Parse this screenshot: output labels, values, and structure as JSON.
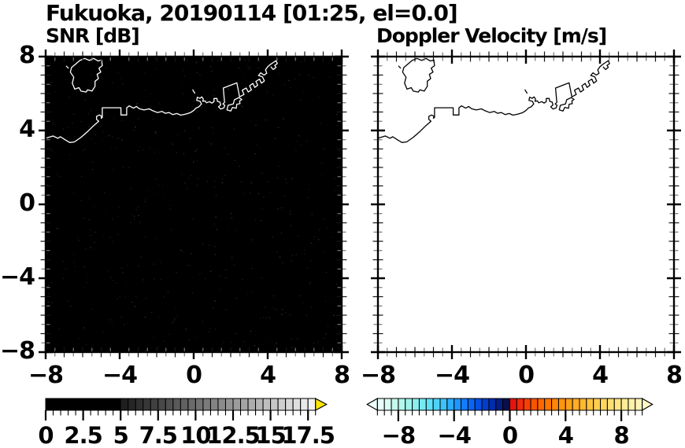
{
  "title": "Fukuoka, 20190114 [01:25, el=0.0]",
  "panels": {
    "left": {
      "subtitle": "SNR [dB]",
      "background": "#000000",
      "coast_color": "#ffffff",
      "has_speckle": true
    },
    "right": {
      "subtitle": "Doppler Velocity [m/s]",
      "background": "#ffffff",
      "coast_color": "#000000",
      "has_speckle": false
    }
  },
  "axes": {
    "range": [
      -8,
      8
    ],
    "minor_step": 0.5,
    "major_tick_values": [
      -8,
      -4,
      0,
      4,
      8
    ],
    "x_tick_labels": [
      "−8",
      "−4",
      "0",
      "4",
      "8"
    ],
    "y_tick_labels": [
      "8",
      "4",
      "0",
      "−4",
      "−8"
    ]
  },
  "colorbars": {
    "snr": {
      "range": [
        0,
        18
      ],
      "segment_step": 0.5,
      "tick_label_values": [
        0,
        2.5,
        5,
        7.5,
        10,
        12.5,
        15,
        17.5
      ],
      "tick_labels": [
        "0",
        "2.5",
        "5",
        "7.5",
        "10",
        "12.5",
        "15",
        "17.5"
      ],
      "black_until": 4.75,
      "gray_start": 30,
      "gray_end": 240,
      "over_arrow_color": "#ffe600"
    },
    "velocity": {
      "range": [
        -9.5,
        9.5
      ],
      "segment_step": 0.5,
      "tick_label_values": [
        -8,
        -4,
        0,
        4,
        8
      ],
      "tick_labels": [
        "−8",
        "−4",
        "0",
        "4",
        "8"
      ],
      "under_arrow_color": "#edfffa",
      "over_arrow_color": "#fff7c8",
      "segment_colors": [
        "#e9fef8",
        "#d9fcf3",
        "#c6faef",
        "#b2f7ec",
        "#9ef3ec",
        "#8aefee",
        "#75e9f2",
        "#60e0f6",
        "#4dd3f9",
        "#3bc2fb",
        "#2badfd",
        "#1d96fe",
        "#127dfb",
        "#0965f3",
        "#0350e4",
        "#003dcd",
        "#002cab",
        "#051d80",
        "#081048",
        "#e51410",
        "#ef2b09",
        "#f74104",
        "#fb5401",
        "#fe6600",
        "#ff7700",
        "#ff8605",
        "#ff940d",
        "#ffa117",
        "#ffad22",
        "#ffb92f",
        "#ffc43e",
        "#ffce4e",
        "#ffd75f",
        "#ffdf71",
        "#ffe683",
        "#ffec96",
        "#fff1a8",
        "#fff5ba"
      ]
    }
  },
  "coastline": {
    "segments": [
      [
        [
          -6.6,
          7.41
        ],
        [
          -6.67,
          7.16
        ],
        [
          -6.48,
          6.88
        ],
        [
          -6.56,
          6.56
        ],
        [
          -6.43,
          6.24
        ],
        [
          -6.2,
          6.32
        ],
        [
          -6.09,
          6.13
        ],
        [
          -5.82,
          6.08
        ],
        [
          -5.73,
          6.2
        ],
        [
          -5.5,
          6.13
        ],
        [
          -5.33,
          6.39
        ],
        [
          -5.33,
          6.67
        ],
        [
          -5.15,
          6.81
        ],
        [
          -5.22,
          7.04
        ],
        [
          -5.02,
          7.16
        ],
        [
          -5.12,
          7.37
        ],
        [
          -4.94,
          7.51
        ],
        [
          -4.98,
          7.82
        ],
        [
          -5.17,
          7.76
        ],
        [
          -5.4,
          7.9
        ],
        [
          -5.64,
          7.79
        ],
        [
          -5.89,
          7.9
        ],
        [
          -6.15,
          7.79
        ],
        [
          -6.35,
          7.62
        ],
        [
          -6.6,
          7.41
        ]
      ],
      [
        [
          -6.88,
          7.48
        ],
        [
          -6.78,
          7.38
        ]
      ],
      [
        [
          -0.05,
          6.2
        ],
        [
          0.06,
          6.02
        ]
      ],
      [
        [
          -8.0,
          3.58
        ],
        [
          -7.6,
          3.7
        ],
        [
          -7.35,
          3.58
        ],
        [
          -7.2,
          3.66
        ],
        [
          -6.95,
          3.5
        ],
        [
          -6.7,
          3.35
        ],
        [
          -6.45,
          3.38
        ],
        [
          -6.1,
          3.62
        ],
        [
          -5.7,
          3.97
        ],
        [
          -5.4,
          4.27
        ],
        [
          -5.13,
          4.5
        ],
        [
          -5.25,
          4.6
        ],
        [
          -5.25,
          4.76
        ],
        [
          -5.1,
          4.84
        ],
        [
          -4.97,
          4.77
        ],
        [
          -5.0,
          4.66
        ],
        [
          -4.94,
          4.7
        ],
        [
          -4.94,
          5.23
        ],
        [
          -3.93,
          5.23
        ],
        [
          -3.93,
          4.84
        ],
        [
          -3.62,
          4.84
        ],
        [
          -3.62,
          5.23
        ],
        [
          -3.48,
          5.33
        ],
        [
          -3.26,
          5.21
        ],
        [
          -3.09,
          5.3
        ],
        [
          -2.95,
          5.18
        ],
        [
          -2.69,
          5.11
        ],
        [
          -2.41,
          5.17
        ],
        [
          -2.21,
          5.07
        ],
        [
          -1.96,
          4.97
        ],
        [
          -1.71,
          5.03
        ],
        [
          -1.54,
          4.93
        ],
        [
          -1.33,
          4.97
        ],
        [
          -1.12,
          4.86
        ],
        [
          -0.91,
          4.92
        ],
        [
          -0.7,
          4.83
        ],
        [
          -0.42,
          4.89
        ],
        [
          -0.17,
          4.97
        ],
        [
          0.0,
          5.08
        ],
        [
          0.14,
          5.22
        ],
        [
          0.28,
          5.28
        ],
        [
          0.42,
          5.44
        ],
        [
          0.35,
          5.58
        ],
        [
          0.16,
          5.63
        ],
        [
          0.2,
          5.8
        ],
        [
          0.34,
          5.74
        ],
        [
          0.44,
          5.82
        ],
        [
          0.52,
          5.7
        ],
        [
          0.49,
          5.58
        ],
        [
          0.62,
          5.6
        ],
        [
          0.69,
          5.5
        ],
        [
          0.86,
          5.56
        ],
        [
          0.98,
          5.48
        ],
        [
          1.1,
          5.56
        ],
        [
          1.1,
          5.73
        ],
        [
          1.26,
          5.73
        ],
        [
          1.28,
          5.58
        ],
        [
          1.42,
          5.53
        ],
        [
          1.46,
          5.38
        ],
        [
          1.34,
          5.28
        ],
        [
          1.46,
          5.16
        ],
        [
          1.63,
          5.22
        ],
        [
          1.68,
          5.36
        ],
        [
          1.58,
          5.44
        ],
        [
          1.67,
          5.52
        ],
        [
          1.6,
          6.3
        ],
        [
          2.33,
          6.58
        ],
        [
          2.48,
          5.82
        ],
        [
          2.72,
          5.95
        ],
        [
          2.62,
          6.18
        ],
        [
          2.84,
          6.3
        ],
        [
          2.95,
          6.08
        ],
        [
          3.12,
          6.2
        ],
        [
          3.02,
          6.42
        ],
        [
          3.2,
          6.55
        ],
        [
          3.3,
          6.33
        ],
        [
          3.46,
          6.45
        ],
        [
          3.36,
          6.66
        ],
        [
          3.56,
          6.78
        ],
        [
          3.66,
          6.56
        ],
        [
          3.82,
          6.68
        ],
        [
          3.72,
          6.9
        ],
        [
          3.5,
          6.98
        ],
        [
          3.62,
          7.12
        ],
        [
          3.8,
          7.0
        ],
        [
          3.95,
          7.1
        ],
        [
          3.88,
          7.28
        ],
        [
          4.0,
          7.45
        ],
        [
          4.15,
          7.58
        ],
        [
          4.3,
          7.68
        ],
        [
          4.45,
          7.78
        ],
        [
          4.52,
          7.62
        ],
        [
          4.38,
          7.52
        ],
        [
          4.45,
          7.42
        ],
        [
          4.3,
          7.3
        ],
        [
          4.18,
          7.44
        ]
      ],
      [
        [
          1.86,
          5.36
        ],
        [
          1.8,
          5.12
        ],
        [
          2.0,
          5.05
        ],
        [
          2.1,
          5.25
        ],
        [
          2.3,
          5.2
        ],
        [
          2.33,
          5.42
        ],
        [
          2.5,
          5.45
        ],
        [
          2.48,
          5.6
        ],
        [
          2.6,
          5.68
        ],
        [
          2.44,
          5.78
        ],
        [
          2.2,
          5.66
        ],
        [
          2.14,
          5.44
        ],
        [
          1.86,
          5.36
        ]
      ]
    ]
  },
  "chart_data": [
    {
      "type": "heatmap",
      "title": "SNR [dB]",
      "xlabel": "",
      "ylabel": "",
      "x_range": [
        -8,
        8
      ],
      "y_range": [
        -8,
        8
      ],
      "x_ticks": [
        -8,
        -4,
        0,
        4,
        8
      ],
      "y_ticks": [
        8,
        4,
        0,
        -4,
        -8
      ],
      "colorbar_ticks": [
        0,
        2.5,
        5,
        7.5,
        10,
        12.5,
        15,
        17.5
      ],
      "colorbar_range": [
        0,
        18
      ],
      "colorbar_style": "grayscale black-to-white, yellow over-range arrow",
      "values_summary": "entire field near 0 dB (black) with sparse faint noise speckle; coastline of Fukuoka / Hakata Bay overlaid in white"
    },
    {
      "type": "heatmap",
      "title": "Doppler Velocity [m/s]",
      "xlabel": "",
      "ylabel": "",
      "x_range": [
        -8,
        8
      ],
      "y_range": [
        -8,
        8
      ],
      "x_ticks": [
        -8,
        -4,
        0,
        4,
        8
      ],
      "y_ticks": [
        8,
        4,
        0,
        -4,
        -8
      ],
      "colorbar_ticks": [
        -8,
        -4,
        0,
        4,
        8
      ],
      "colorbar_range": [
        -9.5,
        9.5
      ],
      "colorbar_style": "cyan-blue-navy for negative, red-orange-yellow-cream for positive, arrows both ends",
      "values_summary": "no echoes detected (blank white field); coastline of Fukuoka / Hakata Bay overlaid in black"
    }
  ]
}
